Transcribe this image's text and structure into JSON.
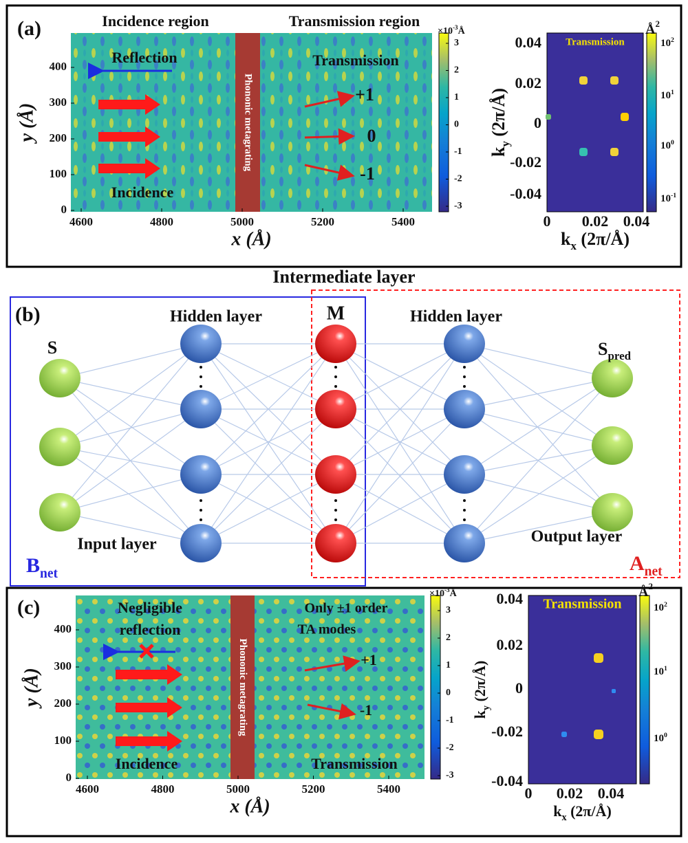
{
  "intermediate_layer": "Intermediate layer",
  "panel_a": {
    "label": "(a)",
    "incidence_region": "Incidence region",
    "transmission_region": "Transmission region",
    "reflection": "Reflection",
    "incidence": "Incidence",
    "transmission": "Transmission",
    "orders": [
      "+1",
      "0",
      "-1"
    ],
    "metagrating": "Phononic metagrating",
    "x_label": "x (Å)",
    "y_label": "y (Å)",
    "x_ticks": [
      4600,
      4800,
      5000,
      5200,
      5400
    ],
    "y_ticks": [
      0,
      100,
      200,
      300,
      400
    ],
    "colorbar_unit": {
      "prefix": "×10",
      "exp": "-3",
      "suffix": "Å"
    },
    "colorbar_ticks": [
      3,
      2,
      1,
      0,
      -1,
      -2,
      -3
    ],
    "k_title": "Transmission",
    "k_unit": {
      "main": "Å",
      "sup": "2"
    },
    "kx_label": {
      "main": "k",
      "sub": "x",
      "rest": " (2π/Å)"
    },
    "ky_label": {
      "main": "k",
      "sub": "y",
      "rest": " (2π/Å)"
    },
    "kx_ticks": [
      0,
      0.02,
      0.04
    ],
    "ky_ticks": [
      0.04,
      0.02,
      0,
      -0.02,
      -0.04
    ],
    "log_base": "10",
    "log_exps": [
      2,
      1,
      0,
      -1
    ]
  },
  "panel_b": {
    "label": "(b)",
    "s": "S",
    "s_pred": {
      "main": "S",
      "sub": "pred"
    },
    "hidden_left": "Hidden layer",
    "hidden_right": "Hidden layer",
    "m": "M",
    "input_layer": "Input layer",
    "output_layer": "Output layer",
    "b_net": {
      "main": "B",
      "sub": "net"
    },
    "a_net": {
      "main": "A",
      "sub": "net"
    }
  },
  "panel_c": {
    "label": "(c)",
    "negligible_reflection": [
      "Negligible",
      "reflection"
    ],
    "incidence": "Incidence",
    "transmission": "Transmission",
    "only_orders": [
      "Only ±1 order",
      "TA modes"
    ],
    "orders": [
      "+1",
      "-1"
    ],
    "metagrating": "Phononic metagrating",
    "x_label": "x (Å)",
    "y_label": "y (Å)",
    "x_ticks": [
      4600,
      4800,
      5000,
      5200,
      5400
    ],
    "y_ticks": [
      0,
      100,
      200,
      300,
      400
    ],
    "colorbar_unit": {
      "prefix": "×10",
      "exp": "-3",
      "suffix": "Å"
    },
    "colorbar_ticks": [
      3,
      2,
      1,
      0,
      -1,
      -2,
      -3
    ],
    "k_title": "Transmission",
    "k_unit": {
      "main": "Å",
      "sup": "2"
    },
    "kx_label": {
      "main": "k",
      "sub": "x",
      "rest": " (2π/Å)"
    },
    "ky_label": {
      "main": "k",
      "sub": "y",
      "rest": " (2π/Å)"
    },
    "kx_ticks": [
      0,
      0.02,
      0.04
    ],
    "ky_ticks": [
      0.04,
      0.02,
      0,
      -0.02,
      -0.04
    ],
    "log_base": "10",
    "log_exps": [
      2,
      1,
      0
    ]
  }
}
